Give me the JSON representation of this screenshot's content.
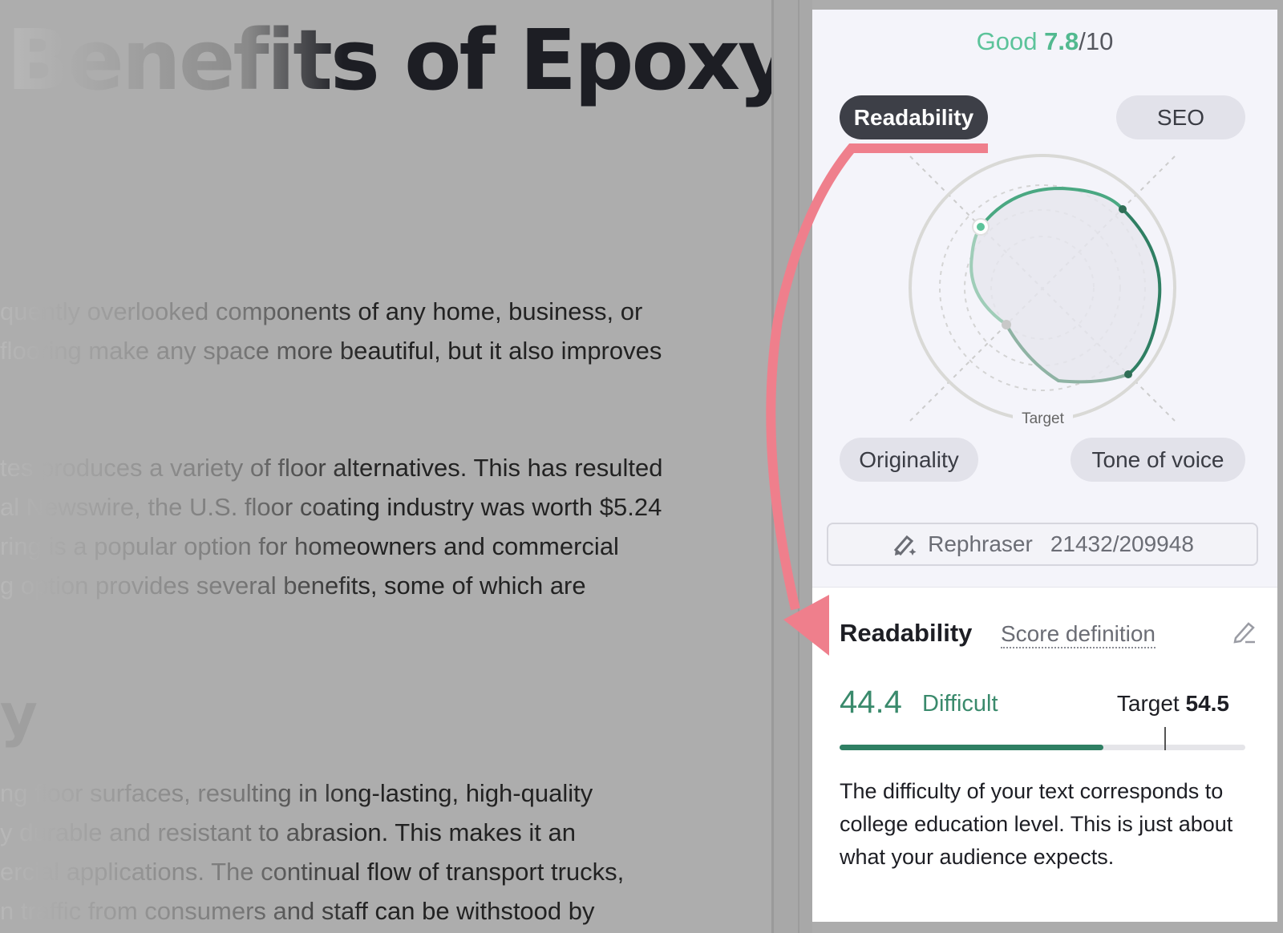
{
  "editor": {
    "title": "Benefits of Epoxy",
    "paragraph1": [
      "quently overlooked components of any home, business, or",
      "flooring make any space more beautiful, but it also improves"
    ],
    "paragraph2": [
      "tes produces a variety of floor alternatives. This has resulted",
      "al Newswire, the U.S. floor coating industry was worth $5.24",
      "ring is a popular option for homeowners and commercial",
      "g option provides several benefits, some of which are"
    ],
    "heading_fragment": "y",
    "paragraph3": [
      "ng floor surfaces, resulting in long-lasting, high-quality",
      "y durable and resistant to abrasion. This makes it an",
      "ercial applications. The continual flow of transport trucks,",
      "n traffic from consumers and staff can be withstood by"
    ]
  },
  "panel": {
    "score_label": "Good",
    "score_value": "7.8",
    "score_max": "/10",
    "tabs": [
      {
        "label": "Readability",
        "active": true
      },
      {
        "label": "SEO",
        "active": false
      },
      {
        "label": "Originality",
        "active": false
      },
      {
        "label": "Tone of voice",
        "active": false
      }
    ],
    "radar_target_label": "Target",
    "rephraser": {
      "label": "Rephraser",
      "count": "21432/209948",
      "icon": "magic-pen-icon"
    },
    "readability": {
      "heading": "Readability",
      "score_definition": "Score definition",
      "value": "44.4",
      "level": "Difficult",
      "target_label": "Target",
      "target_value": "54.5",
      "progress_fraction": 0.65,
      "target_fraction": 0.8,
      "description": "The difficulty of your text corresponds to college education level. This is just about what your audience expects."
    },
    "colors": {
      "accent_green": "#2f7f63",
      "light_green": "#5cc39a",
      "annotation_pink": "#ef7f8c",
      "active_tab": "#3d3f47"
    }
  }
}
